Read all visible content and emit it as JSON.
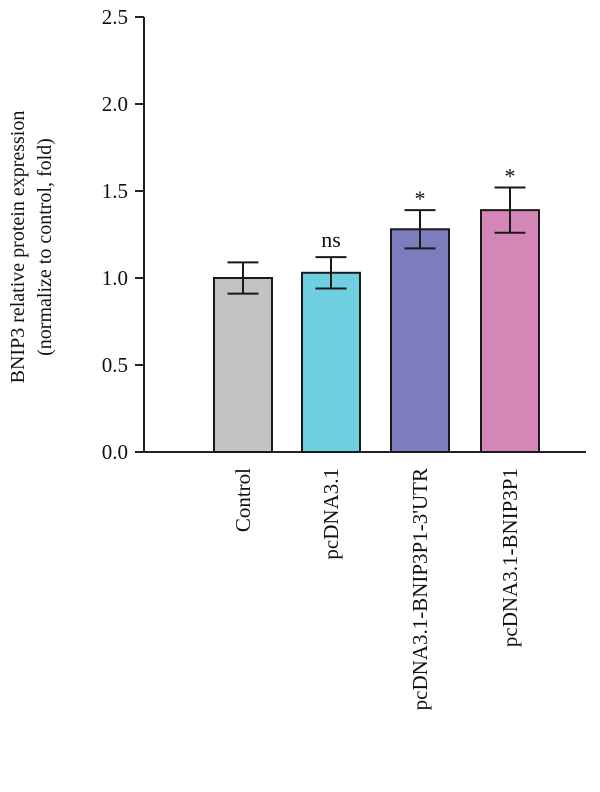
{
  "chart_data": {
    "type": "bar",
    "title": "",
    "xlabel": "",
    "ylabel_line1": "BNIP3 relative protein expression",
    "ylabel_line2": "(normalize to control, fold)",
    "ylim": [
      0,
      2.5
    ],
    "yticks": [
      0.0,
      0.5,
      1.0,
      1.5,
      2.0,
      2.5
    ],
    "ytick_labels": [
      "0.0",
      "0.5",
      "1.0",
      "1.5",
      "2.0",
      "2.5"
    ],
    "categories": [
      "Control",
      "pcDNA3.1",
      "pcDNA3.1-BNIP3P1-3'UTR",
      "pcDNA3.1-BNIP3P1"
    ],
    "values": [
      1.0,
      1.03,
      1.28,
      1.39
    ],
    "error": [
      0.09,
      0.09,
      0.11,
      0.13
    ],
    "annotations": [
      "",
      "ns",
      "*",
      "*"
    ],
    "colors": [
      "#c3c3c3",
      "#6dcfdf",
      "#7b7dbc",
      "#d487b6"
    ],
    "grid": false,
    "legend": "none"
  }
}
